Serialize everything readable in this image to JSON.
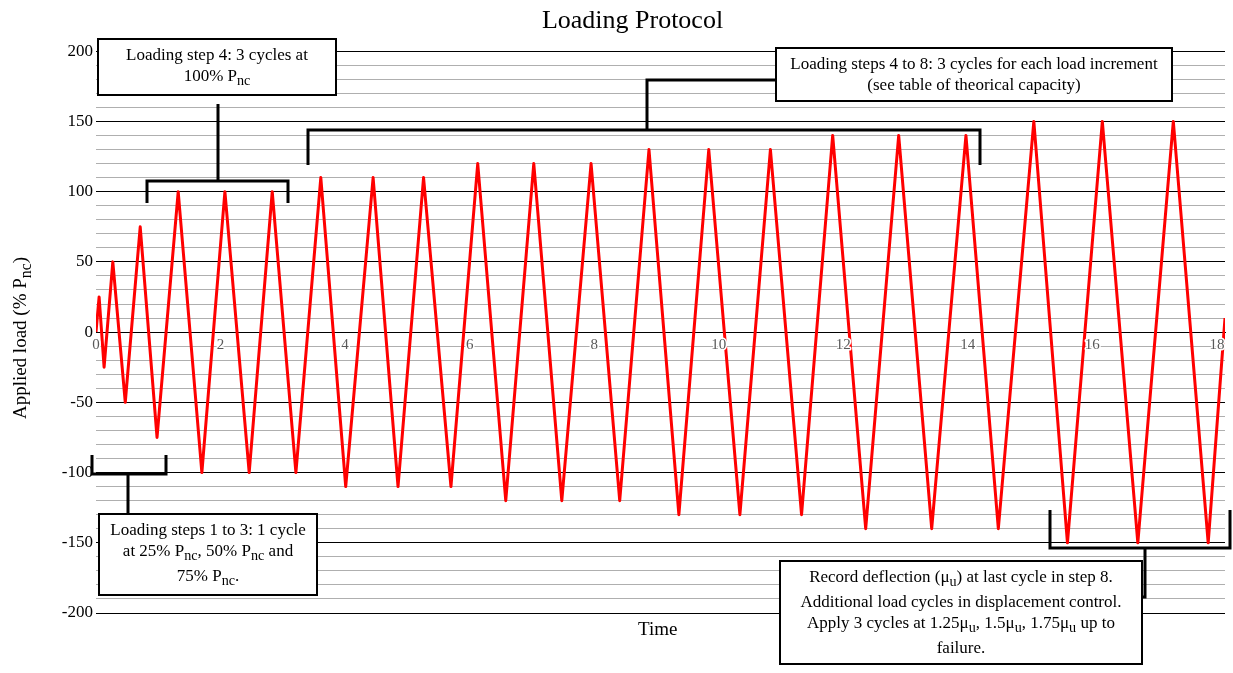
{
  "chart_data": {
    "type": "line",
    "title": "Loading Protocol",
    "xlabel": "Time",
    "ylabel": "Applied load (% P$_{nc}$)",
    "x": [
      0,
      0.05,
      0.13,
      0.27,
      0.47,
      0.71,
      0.98,
      1.32,
      1.7,
      2.07,
      2.46,
      2.83,
      3.21,
      3.61,
      4.01,
      4.45,
      4.85,
      5.26,
      5.7,
      6.13,
      6.58,
      7.03,
      7.48,
      7.95,
      8.41,
      8.88,
      9.36,
      9.84,
      10.34,
      10.83,
      11.33,
      11.83,
      12.36,
      12.89,
      13.42,
      13.97,
      14.49,
      15.06,
      15.6,
      16.16,
      16.73,
      17.3,
      17.86,
      18.13
    ],
    "series": [
      {
        "color": "#ff0000",
        "values": [
          0,
          25,
          -25,
          50,
          -50,
          75,
          -75,
          100,
          -100,
          100,
          -100,
          100,
          -100,
          110,
          -110,
          110,
          -110,
          110,
          -110,
          120,
          -120,
          120,
          -120,
          120,
          -120,
          130,
          -130,
          130,
          -130,
          130,
          -130,
          140,
          -140,
          140,
          -140,
          140,
          -140,
          150,
          -150,
          150,
          -150,
          150,
          -150,
          10
        ]
      }
    ],
    "xlim": [
      0,
      18.13
    ],
    "xticks": [
      0,
      2,
      4,
      6,
      8,
      10,
      12,
      14,
      16,
      18
    ],
    "ylim": [
      -200,
      200
    ],
    "yticks": [
      -200,
      {
        "value": -190,
        "label": null
      },
      {
        "value": -180,
        "label": null
      },
      {
        "value": -170,
        "label": null
      },
      {
        "value": -160,
        "label": null
      },
      -150,
      {
        "value": -140,
        "label": null
      },
      {
        "value": -130,
        "label": null
      },
      {
        "value": -120,
        "label": null
      },
      {
        "value": -110,
        "label": null
      },
      -100,
      {
        "value": -90,
        "label": null
      },
      {
        "value": -80,
        "label": null
      },
      {
        "value": -70,
        "label": null
      },
      {
        "value": -60,
        "label": null
      },
      -50,
      {
        "value": -40,
        "label": null
      },
      {
        "value": -30,
        "label": null
      },
      {
        "value": -20,
        "label": null
      },
      {
        "value": -10,
        "label": null
      },
      0,
      {
        "value": 10,
        "label": null
      },
      {
        "value": 20,
        "label": null
      },
      {
        "value": 30,
        "label": null
      },
      {
        "value": 40,
        "label": null
      },
      50,
      {
        "value": 60,
        "label": null
      },
      {
        "value": 70,
        "label": null
      },
      {
        "value": 80,
        "label": null
      },
      {
        "value": 90,
        "label": null
      },
      100,
      {
        "value": 110,
        "label": null
      },
      {
        "value": 120,
        "label": null
      },
      {
        "value": 130,
        "label": null
      },
      {
        "value": 140,
        "label": null
      },
      150,
      {
        "value": 160,
        "label": null
      },
      {
        "value": 170,
        "label": null
      },
      {
        "value": 180,
        "label": null
      },
      {
        "value": 190,
        "label": null
      },
      200
    ],
    "grid": "y",
    "legend": false,
    "marker": "none",
    "line_style": "solid",
    "annotations": [
      "Loading step 4: 3 cycles at 100% P$_{nc}$",
      "Loading steps 4 to 8: 3 cycles for each load increment (see table of theorical capacity)",
      "Loading steps 1 to 3: 1 cycle at 25% P$_{nc}$, 50% P$_{nc}$ and 75% P$_{nc}$.",
      "Record deflection (μ$_{u}$) at last cycle in step 8. Additional load cycles in displacement control. Apply 3 cycles at 1.25μ$_{u}$, 1.5μ$_{u}$, 1.75μ$_{u}$ up to failure."
    ]
  }
}
